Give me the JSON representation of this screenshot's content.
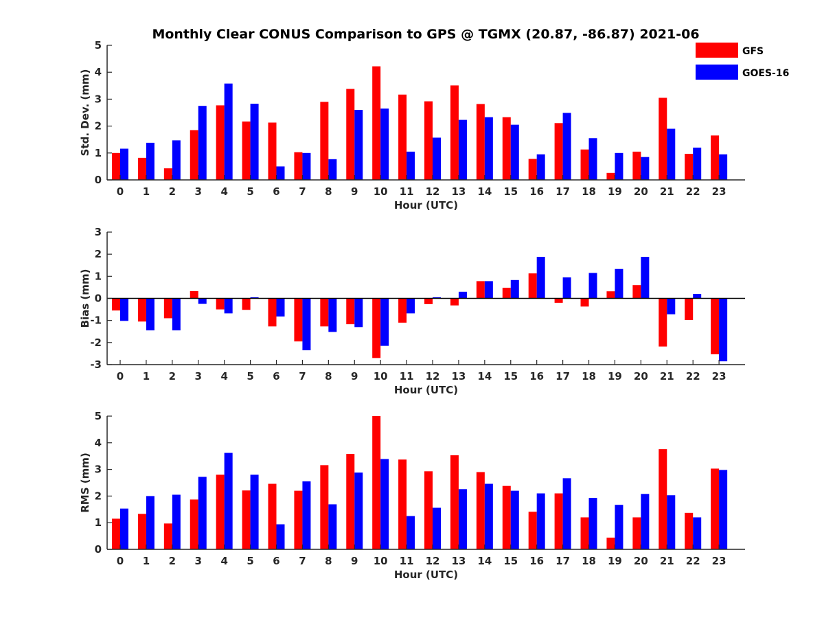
{
  "title": "Monthly Clear CONUS Comparison to GPS @ TGMX (20.87, -86.87) 2021-06",
  "legend": {
    "placement": "top-right, outside plot",
    "items": [
      {
        "label": "GFS",
        "color": "#ff0000"
      },
      {
        "label": "GOES-16",
        "color": "#0000ff"
      }
    ]
  },
  "chart_data": [
    {
      "type": "bar",
      "xlabel": "Hour (UTC)",
      "ylabel": "Std. Dev. (mm)",
      "ylim": [
        0,
        5
      ],
      "yticks": [
        0,
        1,
        2,
        3,
        4,
        5
      ],
      "categories": [
        "0",
        "1",
        "2",
        "3",
        "4",
        "5",
        "6",
        "7",
        "8",
        "9",
        "10",
        "11",
        "12",
        "13",
        "14",
        "15",
        "16",
        "17",
        "18",
        "19",
        "20",
        "21",
        "22",
        "23"
      ],
      "series": [
        {
          "name": "GFS",
          "color": "#ff0000",
          "values": [
            1.0,
            0.82,
            0.43,
            1.85,
            2.77,
            2.17,
            2.13,
            1.03,
            2.9,
            3.38,
            4.22,
            3.17,
            2.92,
            3.51,
            2.82,
            2.33,
            0.78,
            2.11,
            1.13,
            0.26,
            1.05,
            3.05,
            0.97,
            1.65
          ]
        },
        {
          "name": "GOES-16",
          "color": "#0000ff",
          "values": [
            1.16,
            1.38,
            1.47,
            2.75,
            3.58,
            2.83,
            0.5,
            1.0,
            0.77,
            2.6,
            2.65,
            1.05,
            1.57,
            2.23,
            2.33,
            2.05,
            0.95,
            2.49,
            1.55,
            1.0,
            0.85,
            1.9,
            1.2,
            0.95
          ]
        }
      ]
    },
    {
      "type": "bar",
      "xlabel": "Hour (UTC)",
      "ylabel": "Bias (mm)",
      "ylim": [
        -3,
        3
      ],
      "yticks": [
        -3,
        -2,
        -1,
        0,
        1,
        2,
        3
      ],
      "zero_line": true,
      "categories": [
        "0",
        "1",
        "2",
        "3",
        "4",
        "5",
        "6",
        "7",
        "8",
        "9",
        "10",
        "11",
        "12",
        "13",
        "14",
        "15",
        "16",
        "17",
        "18",
        "19",
        "20",
        "21",
        "22",
        "23"
      ],
      "series": [
        {
          "name": "GFS",
          "color": "#ff0000",
          "values": [
            -0.55,
            -1.05,
            -0.9,
            0.33,
            -0.5,
            -0.52,
            -1.27,
            -1.95,
            -1.27,
            -1.17,
            -2.7,
            -1.1,
            -0.26,
            -0.32,
            0.78,
            0.48,
            1.13,
            -0.2,
            -0.37,
            0.32,
            0.6,
            -2.18,
            -0.98,
            -2.53
          ]
        },
        {
          "name": "GOES-16",
          "color": "#0000ff",
          "values": [
            -1.02,
            -1.45,
            -1.45,
            -0.25,
            -0.68,
            0.05,
            -0.82,
            -2.35,
            -1.52,
            -1.3,
            -2.15,
            -0.68,
            0.05,
            0.3,
            0.78,
            0.83,
            1.88,
            0.95,
            1.15,
            1.33,
            1.88,
            -0.72,
            0.2,
            -2.85
          ]
        }
      ]
    },
    {
      "type": "bar",
      "xlabel": "Hour (UTC)",
      "ylabel": "RMS (mm)",
      "ylim": [
        0,
        5
      ],
      "yticks": [
        0,
        1,
        2,
        3,
        4,
        5
      ],
      "categories": [
        "0",
        "1",
        "2",
        "3",
        "4",
        "5",
        "6",
        "7",
        "8",
        "9",
        "10",
        "11",
        "12",
        "13",
        "14",
        "15",
        "16",
        "17",
        "18",
        "19",
        "20",
        "21",
        "22",
        "23"
      ],
      "series": [
        {
          "name": "GFS",
          "color": "#ff0000",
          "values": [
            1.15,
            1.33,
            0.97,
            1.87,
            2.8,
            2.21,
            2.46,
            2.2,
            3.16,
            3.58,
            5.0,
            3.37,
            2.93,
            3.53,
            2.9,
            2.38,
            1.41,
            2.1,
            1.2,
            0.44,
            1.2,
            3.76,
            1.37,
            3.03
          ]
        },
        {
          "name": "GOES-16",
          "color": "#0000ff",
          "values": [
            1.53,
            2.0,
            2.05,
            2.72,
            3.62,
            2.8,
            0.94,
            2.55,
            1.69,
            2.88,
            3.39,
            1.25,
            1.56,
            2.26,
            2.46,
            2.2,
            2.1,
            2.67,
            1.93,
            1.67,
            2.08,
            2.03,
            1.2,
            2.98
          ]
        }
      ]
    }
  ]
}
